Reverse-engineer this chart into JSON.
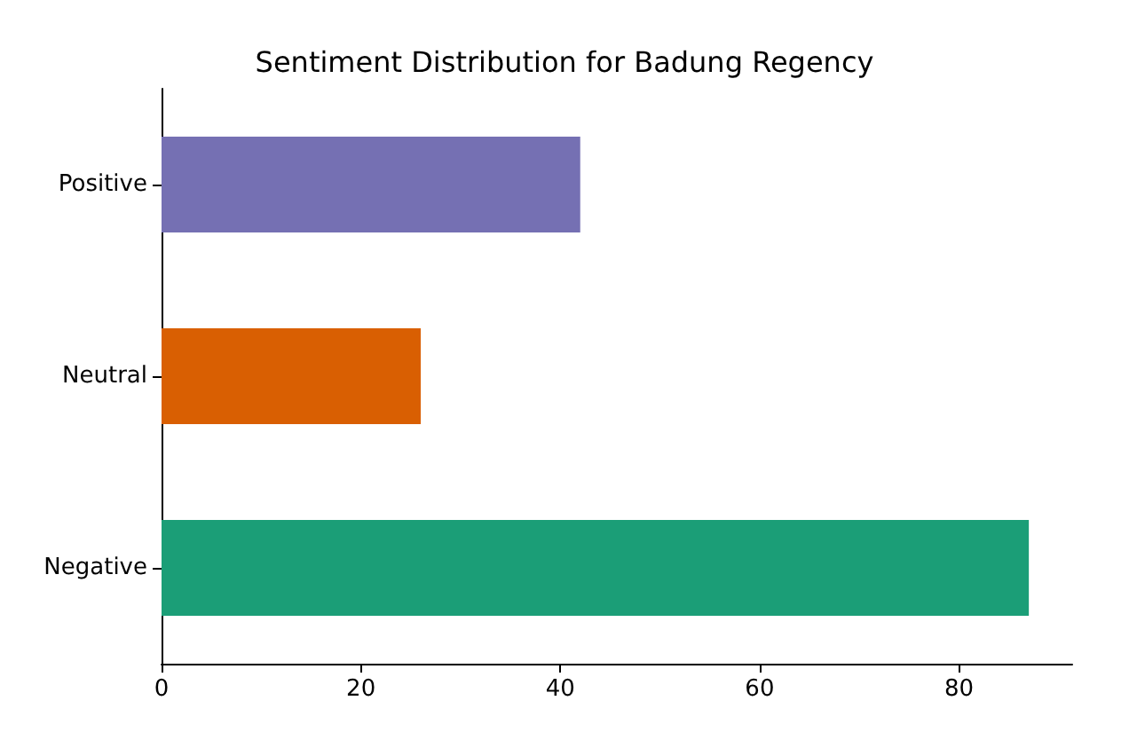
{
  "chart_data": {
    "type": "bar",
    "orientation": "horizontal",
    "title": "Sentiment Distribution for Badung Regency",
    "categories": [
      "Positive",
      "Neutral",
      "Negative"
    ],
    "values": [
      42,
      26,
      87
    ],
    "colors": [
      "#7570b3",
      "#d95f02",
      "#1b9e77"
    ],
    "xlim": [
      0,
      91.35
    ],
    "xticks": [
      0,
      20,
      40,
      60,
      80
    ],
    "grid": false
  }
}
